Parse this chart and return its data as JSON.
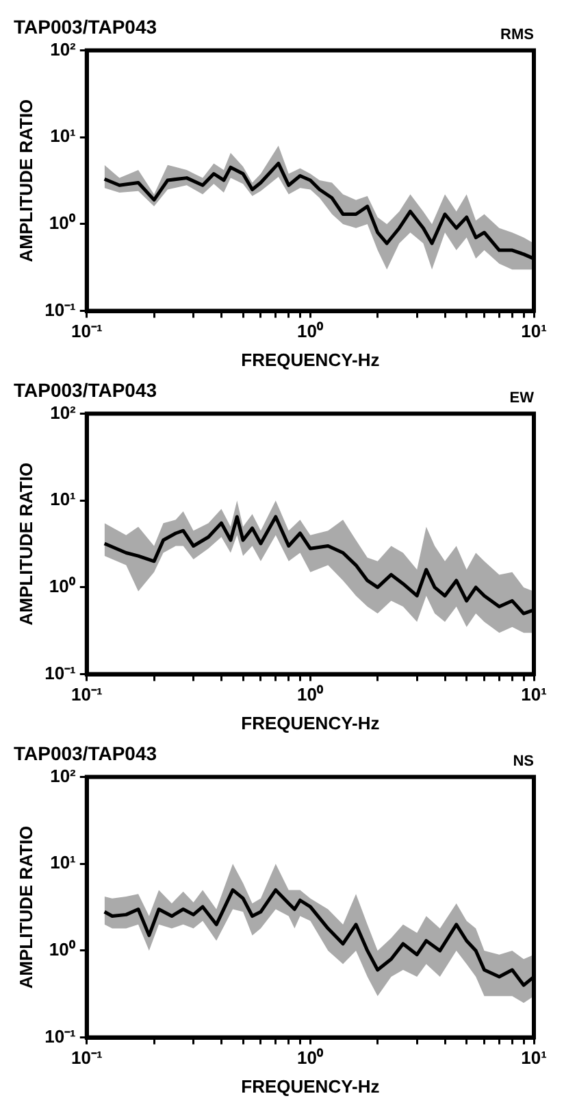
{
  "chart_data": [
    {
      "type": "line",
      "title": "TAP003/TAP043",
      "annotations": [
        "RMS"
      ],
      "xlabel": "FREQUENCY-Hz",
      "ylabel": "AMPLITUDE RATIO",
      "log": "xy",
      "grid": false,
      "legend": false,
      "marker": "none",
      "line_style": "solid",
      "xlim": [
        0.1,
        10
      ],
      "ylim": [
        0.1,
        100
      ],
      "xticks": [
        {
          "value": 0.1,
          "label": "10⁻¹"
        },
        {
          "value": 0.2,
          "label": null
        },
        {
          "value": 0.3,
          "label": null
        },
        {
          "value": 0.4,
          "label": null
        },
        {
          "value": 0.5,
          "label": null
        },
        {
          "value": 0.6,
          "label": null
        },
        {
          "value": 0.7,
          "label": null
        },
        {
          "value": 0.8,
          "label": null
        },
        {
          "value": 0.9,
          "label": null
        },
        {
          "value": 1,
          "label": "10⁰"
        },
        {
          "value": 2,
          "label": null
        },
        {
          "value": 3,
          "label": null
        },
        {
          "value": 4,
          "label": null
        },
        {
          "value": 5,
          "label": null
        },
        {
          "value": 6,
          "label": null
        },
        {
          "value": 7,
          "label": null
        },
        {
          "value": 8,
          "label": null
        },
        {
          "value": 9,
          "label": null
        },
        {
          "value": 10,
          "label": "10¹"
        }
      ],
      "yticks": [
        {
          "value": 0.1,
          "label": "10⁻¹"
        },
        {
          "value": 1,
          "label": "10⁰"
        },
        {
          "value": 10,
          "label": "10¹"
        },
        {
          "value": 100,
          "label": "10²"
        }
      ],
      "x": [
        0.12,
        0.14,
        0.17,
        0.2,
        0.23,
        0.28,
        0.33,
        0.37,
        0.41,
        0.44,
        0.5,
        0.55,
        0.6,
        0.72,
        0.8,
        0.9,
        1.0,
        1.1,
        1.25,
        1.4,
        1.6,
        1.8,
        2.0,
        2.2,
        2.5,
        2.8,
        3.2,
        3.5,
        4.0,
        4.5,
        5.0,
        5.5,
        6.0,
        7.0,
        8.0,
        9.0,
        10
      ],
      "series": [
        {
          "color": "#000000",
          "values": [
            3.3,
            2.8,
            3.0,
            1.9,
            3.2,
            3.4,
            2.8,
            3.8,
            3.2,
            4.5,
            3.8,
            2.5,
            3.0,
            5.0,
            2.8,
            3.6,
            3.2,
            2.5,
            2.0,
            1.3,
            1.3,
            1.6,
            0.8,
            0.6,
            0.9,
            1.4,
            0.9,
            0.6,
            1.3,
            0.9,
            1.2,
            0.7,
            0.8,
            0.5,
            0.5,
            0.45,
            0.4
          ],
          "lower": [
            2.6,
            2.3,
            2.4,
            1.6,
            2.5,
            2.8,
            2.2,
            2.9,
            2.3,
            3.4,
            2.9,
            2.1,
            2.4,
            3.5,
            2.2,
            2.6,
            2.5,
            2.0,
            1.3,
            1.0,
            0.9,
            1.0,
            0.5,
            0.3,
            0.6,
            0.8,
            0.6,
            0.3,
            0.8,
            0.5,
            0.7,
            0.4,
            0.5,
            0.35,
            0.3,
            0.3,
            0.3
          ],
          "upper": [
            4.8,
            3.4,
            4.2,
            2.2,
            4.8,
            4.2,
            3.4,
            5.0,
            4.2,
            6.6,
            4.6,
            3.0,
            3.8,
            8.0,
            3.8,
            4.4,
            3.8,
            3.2,
            3.0,
            2.2,
            1.9,
            2.1,
            1.2,
            1.0,
            1.4,
            2.2,
            1.4,
            1.0,
            2.2,
            1.4,
            2.2,
            1.1,
            1.3,
            0.9,
            0.8,
            0.7,
            0.6
          ]
        }
      ]
    },
    {
      "type": "line",
      "title": "TAP003/TAP043",
      "annotations": [
        "EW"
      ],
      "xlabel": "FREQUENCY-Hz",
      "ylabel": "AMPLITUDE RATIO",
      "log": "xy",
      "grid": false,
      "legend": false,
      "marker": "none",
      "line_style": "solid",
      "xlim": [
        0.1,
        10
      ],
      "ylim": [
        0.1,
        100
      ],
      "xticks": [
        {
          "value": 0.1,
          "label": "10⁻¹"
        },
        {
          "value": 0.2,
          "label": null
        },
        {
          "value": 0.3,
          "label": null
        },
        {
          "value": 0.4,
          "label": null
        },
        {
          "value": 0.5,
          "label": null
        },
        {
          "value": 0.6,
          "label": null
        },
        {
          "value": 0.7,
          "label": null
        },
        {
          "value": 0.8,
          "label": null
        },
        {
          "value": 0.9,
          "label": null
        },
        {
          "value": 1,
          "label": "10⁰"
        },
        {
          "value": 2,
          "label": null
        },
        {
          "value": 3,
          "label": null
        },
        {
          "value": 4,
          "label": null
        },
        {
          "value": 5,
          "label": null
        },
        {
          "value": 6,
          "label": null
        },
        {
          "value": 7,
          "label": null
        },
        {
          "value": 8,
          "label": null
        },
        {
          "value": 9,
          "label": null
        },
        {
          "value": 10,
          "label": "10¹"
        }
      ],
      "yticks": [
        {
          "value": 0.1,
          "label": "10⁻¹"
        },
        {
          "value": 1,
          "label": "10⁰"
        },
        {
          "value": 10,
          "label": "10¹"
        },
        {
          "value": 100,
          "label": "10²"
        }
      ],
      "x": [
        0.12,
        0.15,
        0.17,
        0.2,
        0.22,
        0.25,
        0.27,
        0.3,
        0.35,
        0.4,
        0.44,
        0.47,
        0.5,
        0.55,
        0.6,
        0.7,
        0.8,
        0.9,
        1.0,
        1.2,
        1.4,
        1.6,
        1.8,
        2.0,
        2.3,
        2.6,
        3.0,
        3.3,
        3.6,
        4.0,
        4.5,
        5.0,
        5.5,
        6.0,
        7.0,
        8.0,
        9.0,
        10
      ],
      "series": [
        {
          "color": "#000000",
          "values": [
            3.2,
            2.5,
            2.3,
            2.0,
            3.5,
            4.2,
            4.5,
            3.0,
            3.8,
            5.5,
            3.5,
            6.5,
            3.5,
            4.8,
            3.2,
            6.5,
            3.0,
            4.2,
            2.8,
            3.0,
            2.5,
            1.8,
            1.2,
            1.0,
            1.4,
            1.1,
            0.8,
            1.6,
            1.0,
            0.8,
            1.2,
            0.7,
            1.0,
            0.8,
            0.6,
            0.7,
            0.5,
            0.55
          ],
          "lower": [
            2.3,
            1.8,
            0.9,
            1.5,
            2.5,
            3.0,
            3.0,
            2.1,
            2.8,
            3.8,
            2.5,
            4.0,
            2.3,
            3.0,
            2.0,
            4.0,
            2.0,
            2.5,
            1.5,
            1.8,
            1.2,
            0.8,
            0.6,
            0.5,
            0.7,
            0.6,
            0.4,
            0.8,
            0.5,
            0.4,
            0.6,
            0.35,
            0.5,
            0.4,
            0.3,
            0.35,
            0.3,
            0.3
          ],
          "upper": [
            5.5,
            4.0,
            5.0,
            3.0,
            5.5,
            6.0,
            7.5,
            4.5,
            5.5,
            8.0,
            5.0,
            10,
            5.0,
            7.0,
            4.5,
            10,
            4.5,
            6.0,
            4.0,
            4.5,
            6.0,
            3.5,
            2.2,
            2.0,
            3.0,
            2.5,
            1.6,
            5.0,
            3.0,
            2.0,
            3.0,
            1.6,
            2.5,
            2.0,
            1.4,
            1.5,
            1.0,
            0.9
          ]
        }
      ]
    },
    {
      "type": "line",
      "title": "TAP003/TAP043",
      "annotations": [
        "NS"
      ],
      "xlabel": "FREQUENCY-Hz",
      "ylabel": "AMPLITUDE RATIO",
      "log": "xy",
      "grid": false,
      "legend": false,
      "marker": "none",
      "line_style": "solid",
      "xlim": [
        0.1,
        10
      ],
      "ylim": [
        0.1,
        100
      ],
      "xticks": [
        {
          "value": 0.1,
          "label": "10⁻¹"
        },
        {
          "value": 0.2,
          "label": null
        },
        {
          "value": 0.3,
          "label": null
        },
        {
          "value": 0.4,
          "label": null
        },
        {
          "value": 0.5,
          "label": null
        },
        {
          "value": 0.6,
          "label": null
        },
        {
          "value": 0.7,
          "label": null
        },
        {
          "value": 0.8,
          "label": null
        },
        {
          "value": 0.9,
          "label": null
        },
        {
          "value": 1,
          "label": "10⁰"
        },
        {
          "value": 2,
          "label": null
        },
        {
          "value": 3,
          "label": null
        },
        {
          "value": 4,
          "label": null
        },
        {
          "value": 5,
          "label": null
        },
        {
          "value": 6,
          "label": null
        },
        {
          "value": 7,
          "label": null
        },
        {
          "value": 8,
          "label": null
        },
        {
          "value": 9,
          "label": null
        },
        {
          "value": 10,
          "label": "10¹"
        }
      ],
      "yticks": [
        {
          "value": 0.1,
          "label": "10⁻¹"
        },
        {
          "value": 1,
          "label": "10⁰"
        },
        {
          "value": 10,
          "label": "10¹"
        },
        {
          "value": 100,
          "label": "10²"
        }
      ],
      "x": [
        0.12,
        0.13,
        0.15,
        0.17,
        0.19,
        0.21,
        0.24,
        0.27,
        0.3,
        0.33,
        0.38,
        0.45,
        0.5,
        0.55,
        0.6,
        0.7,
        0.8,
        0.85,
        0.9,
        1.0,
        1.2,
        1.4,
        1.6,
        1.8,
        2.0,
        2.3,
        2.6,
        3.0,
        3.3,
        3.8,
        4.5,
        5.0,
        5.5,
        6.0,
        7.0,
        8.0,
        9.0,
        10
      ],
      "series": [
        {
          "color": "#000000",
          "values": [
            2.8,
            2.5,
            2.6,
            3.0,
            1.5,
            3.0,
            2.5,
            3.0,
            2.6,
            3.2,
            2.0,
            5.0,
            4.0,
            2.5,
            2.8,
            5.0,
            3.5,
            3.0,
            3.8,
            3.2,
            1.8,
            1.2,
            2.0,
            1.0,
            0.6,
            0.8,
            1.2,
            0.9,
            1.3,
            1.0,
            2.0,
            1.3,
            1.0,
            0.6,
            0.5,
            0.6,
            0.4,
            0.5
          ],
          "lower": [
            2.0,
            1.8,
            1.8,
            2.0,
            1.0,
            2.0,
            1.8,
            2.0,
            1.8,
            2.2,
            1.3,
            3.0,
            2.8,
            1.5,
            1.8,
            3.0,
            2.5,
            1.8,
            2.5,
            2.2,
            1.0,
            0.7,
            1.0,
            0.5,
            0.3,
            0.5,
            0.6,
            0.5,
            0.7,
            0.5,
            1.0,
            0.7,
            0.5,
            0.3,
            0.3,
            0.3,
            0.25,
            0.3
          ],
          "upper": [
            4.2,
            4.0,
            4.2,
            4.5,
            2.5,
            5.0,
            3.5,
            4.8,
            3.6,
            5.0,
            3.0,
            10,
            6.0,
            3.5,
            4.0,
            10,
            5.0,
            5.0,
            5.0,
            4.0,
            3.0,
            2.0,
            4.5,
            2.0,
            1.0,
            1.4,
            2.0,
            1.6,
            2.5,
            1.8,
            3.5,
            2.2,
            1.8,
            1.0,
            0.9,
            1.0,
            0.8,
            0.9
          ]
        }
      ]
    }
  ]
}
